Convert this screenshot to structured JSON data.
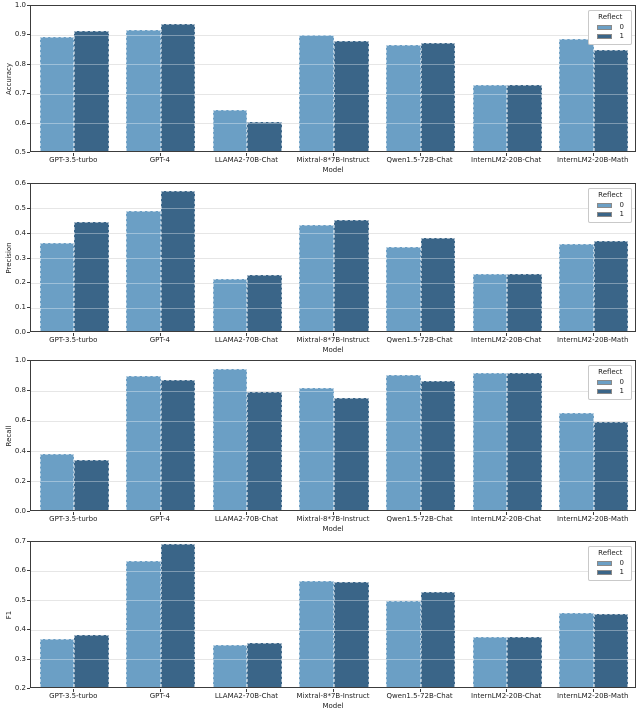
{
  "figure": {
    "background": "#ffffff",
    "spine_color": "#3c3c3c",
    "grid_color": "#d9d9d9",
    "text_color": "#222222"
  },
  "palette": {
    "reflect_0": "#6B9FC5",
    "reflect_1": "#3A6588"
  },
  "chart_data": [
    {
      "type": "bar",
      "ylabel": "Accuracy",
      "xlabel": "Model",
      "ylim": [
        0.5,
        1.0
      ],
      "ytick_labels": [
        "0.5",
        "0.6",
        "0.7",
        "0.8",
        "0.9",
        "1.0"
      ],
      "grid": true,
      "categories": [
        "GPT-3.5-turbo",
        "GPT-4",
        "LLAMA2-70B-Chat",
        "Mixtral-8*7B-Instruct",
        "Qwen1.5-72B-Chat",
        "InternLM2-20B-Chat",
        "InternLM2-20B-Math"
      ],
      "legend": {
        "title": "Reflect",
        "labels": [
          "0",
          "1"
        ],
        "position": "upper right"
      },
      "series": [
        {
          "name": "0",
          "color": "#6B9FC5",
          "values": [
            0.889,
            0.91,
            0.638,
            0.893,
            0.86,
            0.725,
            0.88
          ]
        },
        {
          "name": "1",
          "color": "#3A6588",
          "values": [
            0.907,
            0.932,
            0.6,
            0.873,
            0.866,
            0.725,
            0.843
          ]
        }
      ]
    },
    {
      "type": "bar",
      "ylabel": "Precision",
      "xlabel": "Model",
      "ylim": [
        0.0,
        0.6
      ],
      "ytick_labels": [
        "0.0",
        "0.1",
        "0.2",
        "0.3",
        "0.4",
        "0.5",
        "0.6"
      ],
      "grid": true,
      "categories": [
        "GPT-3.5-turbo",
        "GPT-4",
        "LLAMA2-70B-Chat",
        "Mixtral-8*7B-Instruct",
        "Qwen1.5-72B-Chat",
        "InternLM2-20B-Chat",
        "InternLM2-20B-Math"
      ],
      "legend": {
        "title": "Reflect",
        "labels": [
          "0",
          "1"
        ],
        "position": "upper right"
      },
      "series": [
        {
          "name": "0",
          "color": "#6B9FC5",
          "values": [
            0.355,
            0.485,
            0.208,
            0.428,
            0.34,
            0.23,
            0.35
          ]
        },
        {
          "name": "1",
          "color": "#3A6588",
          "values": [
            0.437,
            0.563,
            0.226,
            0.447,
            0.375,
            0.23,
            0.361
          ]
        }
      ]
    },
    {
      "type": "bar",
      "ylabel": "Recall",
      "xlabel": "Model",
      "ylim": [
        0.0,
        1.0
      ],
      "ytick_labels": [
        "0.0",
        "0.2",
        "0.4",
        "0.6",
        "0.8",
        "1.0"
      ],
      "grid": true,
      "categories": [
        "GPT-3.5-turbo",
        "GPT-4",
        "LLAMA2-70B-Chat",
        "Mixtral-8*7B-Instruct",
        "Qwen1.5-72B-Chat",
        "InternLM2-20B-Chat",
        "InternLM2-20B-Math"
      ],
      "legend": {
        "title": "Reflect",
        "labels": [
          "0",
          "1"
        ],
        "position": "upper right"
      },
      "series": [
        {
          "name": "0",
          "color": "#6B9FC5",
          "values": [
            0.373,
            0.885,
            0.937,
            0.81,
            0.892,
            0.905,
            0.641
          ]
        },
        {
          "name": "1",
          "color": "#3A6588",
          "values": [
            0.332,
            0.861,
            0.782,
            0.744,
            0.857,
            0.905,
            0.584
          ]
        }
      ]
    },
    {
      "type": "bar",
      "ylabel": "F1",
      "xlabel": "Model",
      "ylim": [
        0.2,
        0.7
      ],
      "ytick_labels": [
        "0.2",
        "0.3",
        "0.4",
        "0.5",
        "0.6",
        "0.7"
      ],
      "grid": true,
      "categories": [
        "GPT-3.5-turbo",
        "GPT-4",
        "LLAMA2-70B-Chat",
        "Mixtral-8*7B-Instruct",
        "Qwen1.5-72B-Chat",
        "InternLM2-20B-Chat",
        "InternLM2-20B-Math"
      ],
      "legend": {
        "title": "Reflect",
        "labels": [
          "0",
          "1"
        ],
        "position": "upper right"
      },
      "series": [
        {
          "name": "0",
          "color": "#6B9FC5",
          "values": [
            0.363,
            0.628,
            0.342,
            0.56,
            0.492,
            0.37,
            0.452
          ]
        },
        {
          "name": "1",
          "color": "#3A6588",
          "values": [
            0.377,
            0.685,
            0.351,
            0.558,
            0.523,
            0.369,
            0.449
          ]
        }
      ]
    }
  ]
}
